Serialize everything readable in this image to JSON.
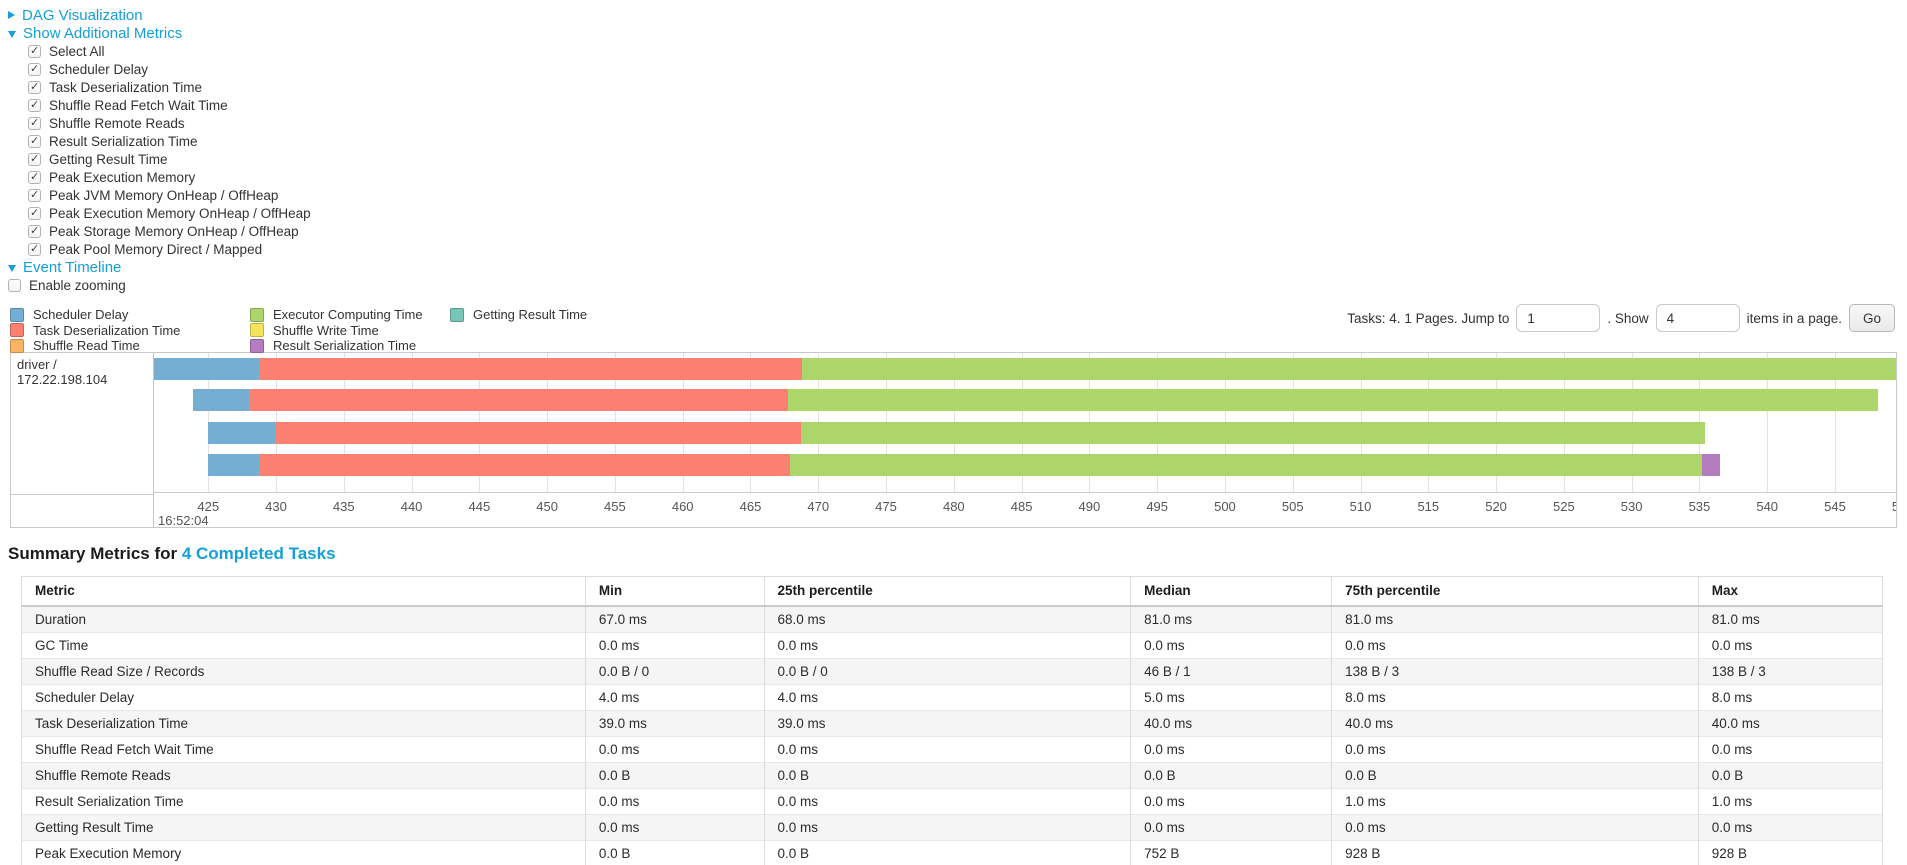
{
  "colors": {
    "link": "#13a0da",
    "scheduler_delay": "#74AFD3",
    "task_deserialization": "#FB8072",
    "shuffle_read": "#FDB462",
    "executor_computing": "#ACD56A",
    "shuffle_write": "#F6E35A",
    "result_serialization": "#B57CC0",
    "getting_result": "#76C7B7"
  },
  "sections": {
    "dag": {
      "label": "DAG Visualization",
      "state": "collapsed"
    },
    "metrics": {
      "label": "Show Additional Metrics",
      "state": "expanded"
    },
    "timeline": {
      "label": "Event Timeline",
      "state": "expanded"
    }
  },
  "metrics_checkboxes": [
    {
      "label": "Select All",
      "checked": true
    },
    {
      "label": "Scheduler Delay",
      "checked": true
    },
    {
      "label": "Task Deserialization Time",
      "checked": true
    },
    {
      "label": "Shuffle Read Fetch Wait Time",
      "checked": true
    },
    {
      "label": "Shuffle Remote Reads",
      "checked": true
    },
    {
      "label": "Result Serialization Time",
      "checked": true
    },
    {
      "label": "Getting Result Time",
      "checked": true
    },
    {
      "label": "Peak Execution Memory",
      "checked": true
    },
    {
      "label": "Peak JVM Memory OnHeap / OffHeap",
      "checked": true
    },
    {
      "label": "Peak Execution Memory OnHeap / OffHeap",
      "checked": true
    },
    {
      "label": "Peak Storage Memory OnHeap / OffHeap",
      "checked": true
    },
    {
      "label": "Peak Pool Memory Direct / Mapped",
      "checked": true
    }
  ],
  "enable_zooming": {
    "label": "Enable zooming",
    "checked": false
  },
  "legend": [
    {
      "key": "scheduler_delay",
      "label": "Scheduler Delay"
    },
    {
      "key": "task_deserialization",
      "label": "Task Deserialization Time"
    },
    {
      "key": "shuffle_read",
      "label": "Shuffle Read Time"
    },
    {
      "key": "executor_computing",
      "label": "Executor Computing Time"
    },
    {
      "key": "shuffle_write",
      "label": "Shuffle Write Time"
    },
    {
      "key": "result_serialization",
      "label": "Result Serialization Time"
    },
    {
      "key": "getting_result",
      "label": "Getting Result Time"
    }
  ],
  "pagination": {
    "tasks_text": "Tasks: 4. 1 Pages. Jump to",
    "jump_value": "1",
    "mid_text": ". Show",
    "show_value": "4",
    "suffix_text": "items in a page.",
    "go_label": "Go"
  },
  "chart_data": {
    "type": "timeline",
    "row_label": "driver / 172.22.198.104",
    "axis": {
      "t_start": 421,
      "t_end": 549.5,
      "tick_start": 425,
      "tick_end": 550,
      "tick_step": 5,
      "start_time_label": "16:52:04",
      "unit": "ms within second"
    },
    "tasks": [
      {
        "segments": [
          {
            "type": "scheduler_delay",
            "start": 421.0,
            "end": 428.8
          },
          {
            "type": "task_deserialization",
            "start": 428.8,
            "end": 468.8
          },
          {
            "type": "executor_computing",
            "start": 468.8,
            "end": 549.5
          }
        ]
      },
      {
        "segments": [
          {
            "type": "scheduler_delay",
            "start": 423.9,
            "end": 428.0
          },
          {
            "type": "task_deserialization",
            "start": 428.0,
            "end": 467.8
          },
          {
            "type": "executor_computing",
            "start": 467.8,
            "end": 548.2
          }
        ]
      },
      {
        "segments": [
          {
            "type": "scheduler_delay",
            "start": 425.0,
            "end": 429.9
          },
          {
            "type": "task_deserialization",
            "start": 429.9,
            "end": 468.7
          },
          {
            "type": "executor_computing",
            "start": 468.7,
            "end": 535.4
          }
        ]
      },
      {
        "segments": [
          {
            "type": "scheduler_delay",
            "start": 425.0,
            "end": 428.8
          },
          {
            "type": "task_deserialization",
            "start": 428.8,
            "end": 467.9
          },
          {
            "type": "executor_computing",
            "start": 467.9,
            "end": 535.2
          },
          {
            "type": "result_serialization",
            "start": 535.2,
            "end": 536.5
          }
        ]
      }
    ]
  },
  "summary": {
    "title_prefix": "Summary Metrics for ",
    "title_link": "4 Completed Tasks"
  },
  "table": {
    "headers": [
      "Metric",
      "Min",
      "25th percentile",
      "Median",
      "75th percentile",
      "Max"
    ],
    "rows": [
      [
        "Duration",
        "67.0 ms",
        "68.0 ms",
        "81.0 ms",
        "81.0 ms",
        "81.0 ms"
      ],
      [
        "GC Time",
        "0.0 ms",
        "0.0 ms",
        "0.0 ms",
        "0.0 ms",
        "0.0 ms"
      ],
      [
        "Shuffle Read Size / Records",
        "0.0 B / 0",
        "0.0 B / 0",
        "46 B / 1",
        "138 B / 3",
        "138 B / 3"
      ],
      [
        "Scheduler Delay",
        "4.0 ms",
        "4.0 ms",
        "5.0 ms",
        "8.0 ms",
        "8.0 ms"
      ],
      [
        "Task Deserialization Time",
        "39.0 ms",
        "39.0 ms",
        "40.0 ms",
        "40.0 ms",
        "40.0 ms"
      ],
      [
        "Shuffle Read Fetch Wait Time",
        "0.0 ms",
        "0.0 ms",
        "0.0 ms",
        "0.0 ms",
        "0.0 ms"
      ],
      [
        "Shuffle Remote Reads",
        "0.0 B",
        "0.0 B",
        "0.0 B",
        "0.0 B",
        "0.0 B"
      ],
      [
        "Result Serialization Time",
        "0.0 ms",
        "0.0 ms",
        "0.0 ms",
        "1.0 ms",
        "1.0 ms"
      ],
      [
        "Getting Result Time",
        "0.0 ms",
        "0.0 ms",
        "0.0 ms",
        "0.0 ms",
        "0.0 ms"
      ],
      [
        "Peak Execution Memory",
        "0.0 B",
        "0.0 B",
        "752 B",
        "928 B",
        "928 B"
      ]
    ]
  }
}
